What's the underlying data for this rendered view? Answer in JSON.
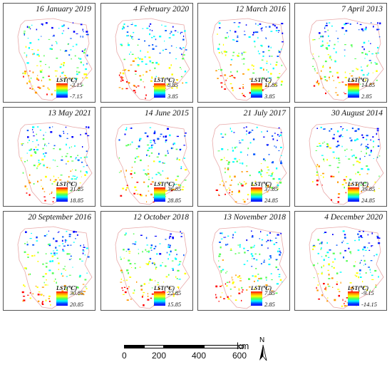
{
  "legend_title": "LST(℃)",
  "colors": {
    "max": "#ff0000",
    "high": "#ff9900",
    "mid_high": "#ffff00",
    "mid": "#55ff55",
    "mid_low": "#00ffff",
    "low": "#0055ff",
    "min": "#0000ff",
    "boundary": "#e8a8a8"
  },
  "panels": [
    {
      "date": "16 January 2019",
      "max": "-3.15",
      "min": "-7.15"
    },
    {
      "date": "4 February 2020",
      "max": "8.85",
      "min": "3.85"
    },
    {
      "date": "12 March 2016",
      "max": "11.85",
      "min": "3.85"
    },
    {
      "date": "7 April 2013",
      "max": "14.85",
      "min": "2.85"
    },
    {
      "date": "13 May 2021",
      "max": "31.85",
      "min": "18.85"
    },
    {
      "date": "14 June 2015",
      "max": "36.85",
      "min": "28.85"
    },
    {
      "date": "21 July 2017",
      "max": "37.85",
      "min": "24.85"
    },
    {
      "date": "30 August 2014",
      "max": "39.85",
      "min": "24.85"
    },
    {
      "date": "20 September 2016",
      "max": "30.85",
      "min": "20.85"
    },
    {
      "date": "12 October 2018",
      "max": "22.85",
      "min": "15.85"
    },
    {
      "date": "13 November 2018",
      "max": "7.85",
      "min": "2.85"
    },
    {
      "date": "4 December 2020",
      "max": "-9.15",
      "min": "-14.15"
    }
  ],
  "scale_bar": {
    "ticks": [
      "0",
      "200",
      "400",
      "600"
    ],
    "unit": "km"
  },
  "north_arrow": {
    "label": "N",
    "icon": "north-arrow-icon"
  }
}
